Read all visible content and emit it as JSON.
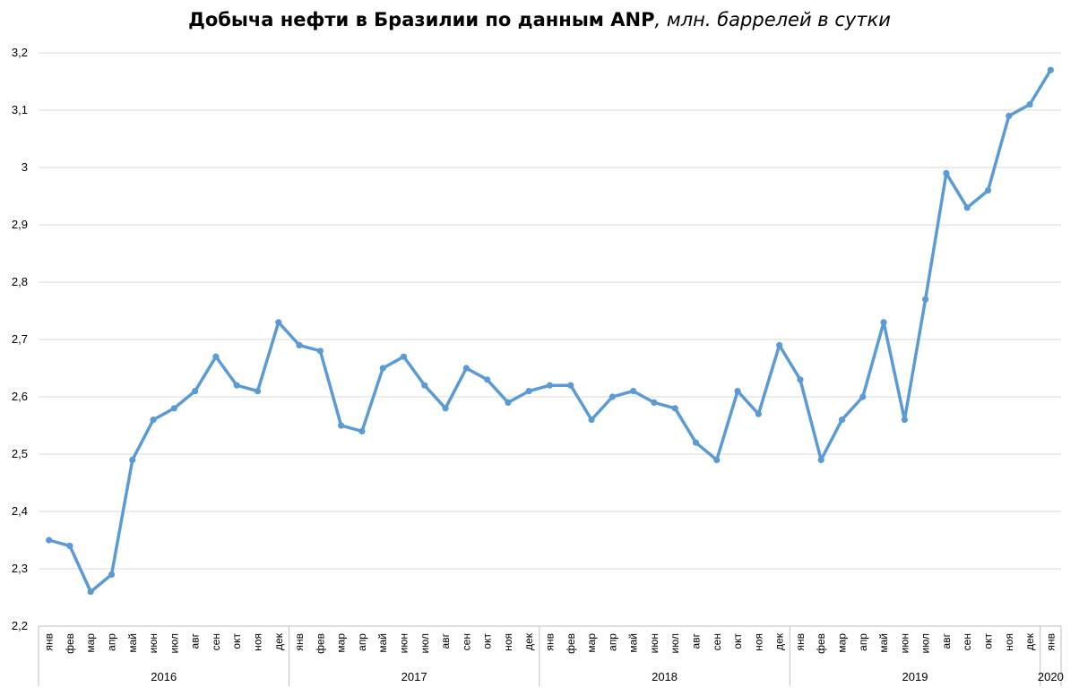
{
  "chart_data": {
    "type": "line",
    "title": "Добыча нефти в Бразилии по данным ANP",
    "subtitle": ", млн. баррелей в сутки",
    "xlabel": "",
    "ylabel": "",
    "ylim": [
      2.2,
      3.2
    ],
    "yticks": [
      "2,2",
      "2,3",
      "2,4",
      "2,5",
      "2,6",
      "2,7",
      "2,8",
      "2,9",
      "3",
      "3,1",
      "3,2"
    ],
    "grid": true,
    "line_color": "#5b9bd5",
    "categories": [
      "янв",
      "фев",
      "мар",
      "апр",
      "май",
      "июн",
      "июл",
      "авг",
      "сен",
      "окт",
      "ноя",
      "дек",
      "янв",
      "фев",
      "мар",
      "апр",
      "май",
      "июн",
      "июл",
      "авг",
      "сен",
      "окт",
      "ноя",
      "дек",
      "янв",
      "фев",
      "мар",
      "апр",
      "май",
      "июн",
      "июл",
      "авг",
      "сен",
      "окт",
      "ноя",
      "дек",
      "янв",
      "фев",
      "мар",
      "апр",
      "май",
      "июн",
      "июл",
      "авг",
      "сен",
      "окт",
      "ноя",
      "дек",
      "янв"
    ],
    "years": [
      {
        "label": "2016",
        "start": 0,
        "count": 12
      },
      {
        "label": "2017",
        "start": 12,
        "count": 12
      },
      {
        "label": "2018",
        "start": 24,
        "count": 12
      },
      {
        "label": "2019",
        "start": 36,
        "count": 12
      },
      {
        "label": "2020",
        "start": 48,
        "count": 1
      }
    ],
    "series": [
      {
        "values": [
          2.35,
          2.34,
          2.26,
          2.29,
          2.49,
          2.56,
          2.58,
          2.61,
          2.67,
          2.62,
          2.61,
          2.73,
          2.69,
          2.68,
          2.55,
          2.54,
          2.65,
          2.67,
          2.62,
          2.58,
          2.65,
          2.63,
          2.59,
          2.61,
          2.62,
          2.62,
          2.56,
          2.6,
          2.61,
          2.59,
          2.58,
          2.52,
          2.49,
          2.61,
          2.57,
          2.69,
          2.63,
          2.49,
          2.56,
          2.6,
          2.73,
          2.56,
          2.77,
          2.99,
          2.93,
          2.96,
          3.09,
          3.11,
          3.17
        ]
      }
    ]
  }
}
